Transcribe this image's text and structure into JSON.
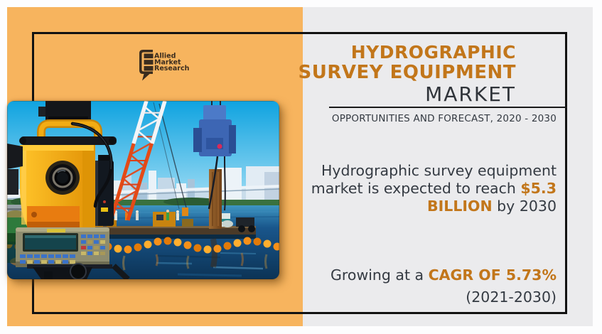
{
  "brand": {
    "name_line1": "Allied",
    "name_line2": "Market",
    "name_line3": "Research"
  },
  "header": {
    "title_line1": "HYDROGRAPHIC",
    "title_line2": "SURVEY EQUIPMENT",
    "title_line3": "MARKET",
    "subtitle": "OPPORTUNITIES AND FORECAST, 2020 - 2030"
  },
  "stats": {
    "reach_lines": [
      [
        {
          "t": "Hydrographic survey equipment"
        }
      ],
      [
        {
          "t": "market is expected to reach "
        },
        {
          "t": "$5.3",
          "accent": true
        }
      ],
      [
        {
          "t": "BILLION",
          "accent": true
        },
        {
          "t": " by 2030"
        }
      ]
    ],
    "growth_lines": [
      [
        {
          "t": "Growing at a "
        },
        {
          "t": "CAGR OF 5.73%",
          "accent": true
        }
      ]
    ],
    "period": "(2021-2030)"
  },
  "icons": {
    "logo_mark": "speech-bubble-report-icon"
  },
  "colors": {
    "accent_orange": "#C2761A",
    "band_orange": "#F7B45E",
    "panel_gray": "#EBEBED",
    "ink_dark": "#343A42",
    "frame_black": "#121212",
    "logo_brown": "#3A2C1E",
    "photo_sky_blue": "#12A7E4",
    "photo_water_blue": "#0C3355",
    "photo_boom_orange": "#F59018",
    "photo_crane_red": "#E44A16"
  }
}
